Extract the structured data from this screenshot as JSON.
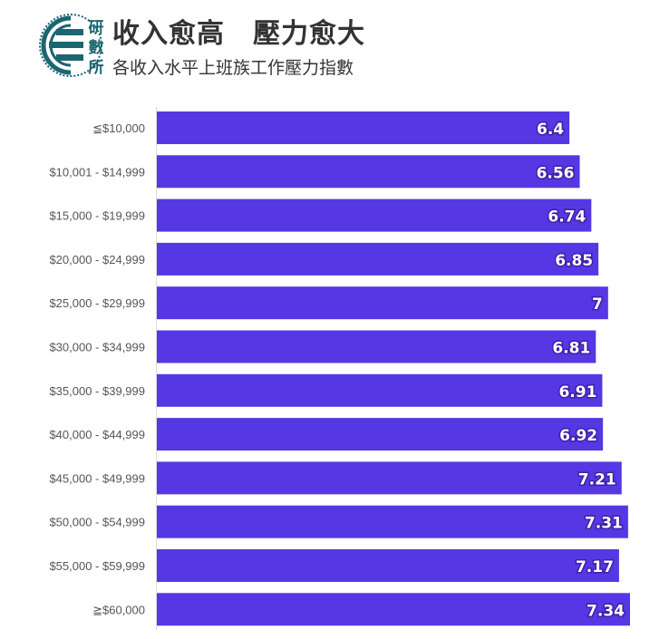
{
  "header": {
    "title": "收入愈高　壓力愈大",
    "subtitle": "各收入水平上班族工作壓力指數",
    "logo_text": "研數所"
  },
  "colors": {
    "bar": "#5538e3",
    "logo": "#1b6670"
  },
  "chart_data": {
    "type": "bar",
    "orientation": "horizontal",
    "title": "收入愈高　壓力愈大",
    "subtitle": "各收入水平上班族工作壓力指數",
    "xlabel": "",
    "ylabel": "",
    "xlim": [
      0,
      7.9
    ],
    "grid": false,
    "categories": [
      "≦$10,000",
      "$10,001 - $14,999",
      "$15,000 - $19,999",
      "$20,000 - $24,999",
      "$25,000 - $29,999",
      "$30,000 - $34,999",
      "$35,000 - $39,999",
      "$40,000 - $44,999",
      "$45,000 - $49,999",
      "$50,000 - $54,999",
      "$55,000 - $59,999",
      "≧$60,000"
    ],
    "values": [
      6.4,
      6.56,
      6.74,
      6.85,
      7,
      6.81,
      6.91,
      6.92,
      7.21,
      7.31,
      7.17,
      7.34
    ]
  }
}
